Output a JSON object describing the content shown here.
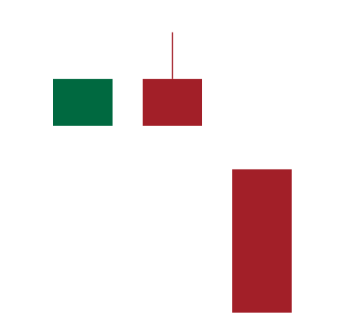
{
  "chart_data": {
    "type": "candlestick",
    "title": "",
    "xlabel": "",
    "ylabel": "",
    "grid": false,
    "legend": "none",
    "ylim": [
      0,
      100
    ],
    "colors": {
      "up": "#006940",
      "down": "#A21F28",
      "background": "#FFFFFF"
    },
    "candles": [
      {
        "index": 1,
        "open": 67,
        "close": 82,
        "high": 82,
        "low": 67,
        "direction": "up"
      },
      {
        "index": 2,
        "open": 82,
        "close": 67,
        "high": 97,
        "low": 67,
        "direction": "down"
      },
      {
        "index": 3,
        "open": 53,
        "close": 7,
        "high": 53,
        "low": 7,
        "direction": "down"
      }
    ]
  }
}
